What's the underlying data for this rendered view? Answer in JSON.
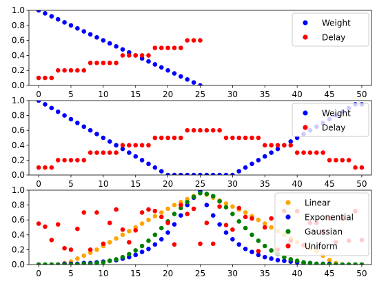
{
  "chart_data": [
    {
      "type": "scatter",
      "xlim": [
        -1.5,
        51.5
      ],
      "ylim": [
        0,
        1
      ],
      "x_ticks": [
        0,
        5,
        10,
        15,
        20,
        25,
        30,
        35,
        40,
        45,
        50
      ],
      "y_ticks": [
        0.0,
        0.2,
        0.4,
        0.6,
        0.8,
        1.0
      ],
      "legend_position": "upper right",
      "series": [
        {
          "name": "Weight",
          "color": "#0000ff",
          "x": [
            0,
            1,
            2,
            3,
            4,
            5,
            6,
            7,
            8,
            9,
            10,
            11,
            12,
            13,
            14,
            15,
            16,
            17,
            18,
            19,
            20,
            21,
            22,
            23,
            24,
            25
          ],
          "y": [
            1.0,
            0.96,
            0.92,
            0.88,
            0.84,
            0.8,
            0.76,
            0.72,
            0.68,
            0.64,
            0.6,
            0.56,
            0.52,
            0.48,
            0.44,
            0.4,
            0.36,
            0.32,
            0.28,
            0.24,
            0.2,
            0.16,
            0.12,
            0.08,
            0.04,
            0.0
          ]
        },
        {
          "name": "Delay",
          "color": "#ff0000",
          "x": [
            0,
            1,
            2,
            3,
            4,
            5,
            6,
            7,
            8,
            9,
            10,
            11,
            12,
            13,
            14,
            15,
            16,
            17,
            18,
            19,
            20,
            21,
            22,
            23,
            24,
            25
          ],
          "y": [
            0.1,
            0.1,
            0.1,
            0.2,
            0.2,
            0.2,
            0.2,
            0.2,
            0.3,
            0.3,
            0.3,
            0.3,
            0.3,
            0.4,
            0.4,
            0.4,
            0.4,
            0.4,
            0.5,
            0.5,
            0.5,
            0.5,
            0.5,
            0.6,
            0.6,
            0.6
          ]
        }
      ]
    },
    {
      "type": "scatter",
      "xlim": [
        -1.5,
        51.5
      ],
      "ylim": [
        0,
        1
      ],
      "x_ticks": [
        0,
        5,
        10,
        15,
        20,
        25,
        30,
        35,
        40,
        45,
        50
      ],
      "y_ticks": [
        0.0,
        0.2,
        0.4,
        0.6,
        0.8,
        1.0
      ],
      "legend_position": "upper right",
      "series": [
        {
          "name": "Weight",
          "color": "#0000ff",
          "x": [
            0,
            1,
            2,
            3,
            4,
            5,
            6,
            7,
            8,
            9,
            10,
            11,
            12,
            13,
            14,
            15,
            16,
            17,
            18,
            19,
            20,
            21,
            22,
            23,
            24,
            25,
            26,
            27,
            28,
            29,
            30,
            31,
            32,
            33,
            34,
            35,
            36,
            37,
            38,
            39,
            40,
            41,
            42,
            43,
            44,
            45,
            46,
            47,
            48,
            49,
            50
          ],
          "y": [
            1.0,
            0.95,
            0.9,
            0.85,
            0.8,
            0.75,
            0.7,
            0.65,
            0.6,
            0.55,
            0.5,
            0.45,
            0.4,
            0.35,
            0.3,
            0.25,
            0.2,
            0.15,
            0.1,
            0.05,
            0.0,
            0.0,
            0.0,
            0.0,
            0.0,
            0.0,
            0.0,
            0.0,
            0.0,
            0.0,
            0.0,
            0.05,
            0.1,
            0.15,
            0.2,
            0.25,
            0.3,
            0.35,
            0.4,
            0.45,
            0.5,
            0.55,
            0.6,
            0.65,
            0.7,
            0.75,
            0.8,
            0.85,
            0.9,
            0.95,
            0.95
          ]
        },
        {
          "name": "Delay",
          "color": "#ff0000",
          "x": [
            0,
            1,
            2,
            3,
            4,
            5,
            6,
            7,
            8,
            9,
            10,
            11,
            12,
            13,
            14,
            15,
            16,
            17,
            18,
            19,
            20,
            21,
            22,
            23,
            24,
            25,
            26,
            27,
            28,
            29,
            30,
            31,
            32,
            33,
            34,
            35,
            36,
            37,
            38,
            39,
            40,
            41,
            42,
            43,
            44,
            45,
            46,
            47,
            48,
            49,
            50
          ],
          "y": [
            0.1,
            0.1,
            0.1,
            0.2,
            0.2,
            0.2,
            0.2,
            0.2,
            0.3,
            0.3,
            0.3,
            0.3,
            0.3,
            0.4,
            0.4,
            0.4,
            0.4,
            0.4,
            0.5,
            0.5,
            0.5,
            0.5,
            0.5,
            0.6,
            0.6,
            0.6,
            0.6,
            0.6,
            0.6,
            0.5,
            0.5,
            0.5,
            0.5,
            0.5,
            0.5,
            0.4,
            0.4,
            0.4,
            0.4,
            0.4,
            0.3,
            0.3,
            0.3,
            0.3,
            0.3,
            0.2,
            0.2,
            0.2,
            0.2,
            0.1,
            0.1
          ]
        }
      ]
    },
    {
      "type": "scatter",
      "xlim": [
        -1.5,
        51.5
      ],
      "ylim": [
        0,
        1
      ],
      "x_ticks": [
        0,
        5,
        10,
        15,
        20,
        25,
        30,
        35,
        40,
        45,
        50
      ],
      "y_ticks": [
        0.0,
        0.2,
        0.4,
        0.6,
        0.8,
        1.0
      ],
      "legend_position": "upper right",
      "series": [
        {
          "name": "Linear",
          "color": "#ffa500",
          "x": [
            0,
            1,
            2,
            3,
            4,
            5,
            6,
            7,
            8,
            9,
            10,
            11,
            12,
            13,
            14,
            15,
            16,
            17,
            18,
            19,
            20,
            21,
            22,
            23,
            24,
            25,
            26,
            27,
            28,
            29,
            30,
            31,
            32,
            33,
            34,
            35,
            36,
            37,
            38,
            39,
            40,
            41,
            42,
            43,
            44,
            45,
            46,
            47,
            48,
            49,
            50
          ],
          "y": [
            0,
            0,
            0,
            0,
            0.02,
            0.04,
            0.08,
            0.12,
            0.16,
            0.2,
            0.25,
            0.3,
            0.35,
            0.4,
            0.45,
            0.5,
            0.55,
            0.6,
            0.65,
            0.7,
            0.75,
            0.8,
            0.84,
            0.88,
            0.92,
            0.96,
            0.94,
            0.9,
            0.86,
            0.82,
            0.78,
            0.74,
            0.7,
            0.65,
            0.6,
            0.55,
            0.5,
            0.45,
            0.4,
            0.35,
            0.3,
            0.26,
            0.22,
            0.18,
            0.12,
            0.06,
            0.02,
            0,
            0,
            0,
            0
          ]
        },
        {
          "name": "Exponential",
          "color": "#0000ff",
          "x": [
            0,
            1,
            2,
            3,
            4,
            5,
            6,
            7,
            8,
            9,
            10,
            11,
            12,
            13,
            14,
            15,
            16,
            17,
            18,
            19,
            20,
            21,
            22,
            23,
            24,
            25,
            26,
            27,
            28,
            29,
            30,
            31,
            32,
            33,
            34,
            35,
            36,
            37,
            38,
            39,
            40,
            41,
            42,
            43,
            44,
            45,
            46,
            47,
            48,
            49,
            50
          ],
          "y": [
            0,
            0,
            0,
            0,
            0.01,
            0.01,
            0.01,
            0.02,
            0.02,
            0.03,
            0.04,
            0.05,
            0.06,
            0.08,
            0.1,
            0.13,
            0.17,
            0.21,
            0.27,
            0.34,
            0.43,
            0.54,
            0.66,
            0.8,
            0.9,
            0.98,
            0.8,
            0.66,
            0.54,
            0.43,
            0.34,
            0.27,
            0.21,
            0.17,
            0.13,
            0.1,
            0.08,
            0.06,
            0.05,
            0.04,
            0.03,
            0.02,
            0.02,
            0.01,
            0.01,
            0.01,
            0,
            0,
            0,
            0,
            0
          ]
        },
        {
          "name": "Gaussian",
          "color": "#008000",
          "x": [
            0,
            1,
            2,
            3,
            4,
            5,
            6,
            7,
            8,
            9,
            10,
            11,
            12,
            13,
            14,
            15,
            16,
            17,
            18,
            19,
            20,
            21,
            22,
            23,
            24,
            25,
            26,
            27,
            28,
            29,
            30,
            31,
            32,
            33,
            34,
            35,
            36,
            37,
            38,
            39,
            40,
            41,
            42,
            43,
            44,
            45,
            46,
            47,
            48,
            49,
            50
          ],
          "y": [
            0,
            0,
            0,
            0,
            0,
            0,
            0,
            0.01,
            0.01,
            0.02,
            0.03,
            0.05,
            0.07,
            0.1,
            0.14,
            0.19,
            0.25,
            0.32,
            0.4,
            0.49,
            0.58,
            0.68,
            0.76,
            0.84,
            0.91,
            0.96,
            0.95,
            0.92,
            0.85,
            0.77,
            0.68,
            0.58,
            0.49,
            0.4,
            0.32,
            0.25,
            0.19,
            0.14,
            0.1,
            0.07,
            0.05,
            0.03,
            0.02,
            0.01,
            0.01,
            0,
            0,
            0,
            0,
            0,
            0
          ]
        },
        {
          "name": "Uniform",
          "color": "#ff0000",
          "x": [
            0,
            1,
            2,
            3,
            4,
            5,
            6,
            7,
            8,
            9,
            10,
            11,
            12,
            13,
            14,
            15,
            16,
            17,
            18,
            19,
            20,
            21,
            22,
            23,
            24,
            25,
            26,
            27,
            28,
            29,
            30,
            31,
            32,
            33,
            34,
            35,
            36,
            37,
            38,
            39,
            40,
            41,
            42,
            43,
            44,
            45,
            46,
            47,
            48,
            49,
            50
          ],
          "y": [
            0.55,
            0.51,
            0.33,
            0.54,
            0.22,
            0.2,
            0.48,
            0.7,
            0.2,
            0.7,
            0.28,
            0.56,
            0.74,
            0.47,
            0.3,
            0.46,
            0.7,
            0.74,
            0.72,
            0.64,
            0.56,
            0.27,
            0.8,
            0.68,
            0.75,
            0.28,
            0.56,
            0.28,
            0.78,
            0.53,
            0.47,
            0.76,
            0.64,
            0.62,
            0.18,
            0.5,
            0.62,
            0.2,
            0.72,
            0.32,
            0.72,
            0.26,
            0.56,
            0.56,
            0.44,
            0.62,
            0.3,
            0.62,
            0.32,
            0.72,
            0.33
          ]
        }
      ]
    }
  ]
}
